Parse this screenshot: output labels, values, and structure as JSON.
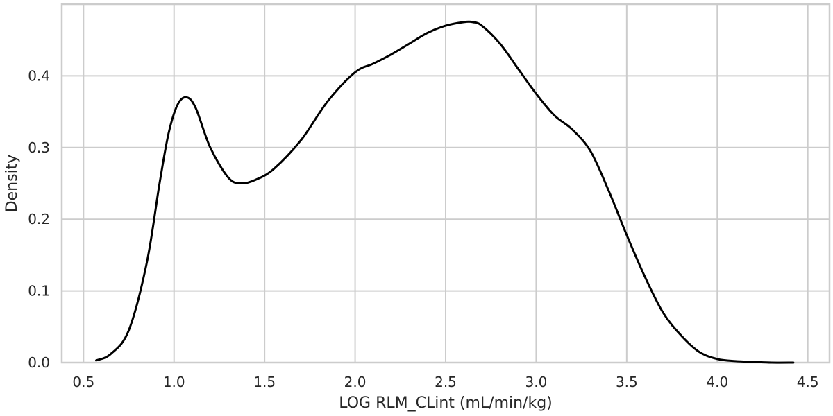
{
  "chart_data": {
    "type": "line",
    "title": "",
    "xlabel": "LOG RLM_CLint (mL/min/kg)",
    "ylabel": "Density",
    "xlim": [
      0.38,
      4.62
    ],
    "ylim": [
      0.0,
      0.5
    ],
    "xticks": [
      0.5,
      1.0,
      1.5,
      2.0,
      2.5,
      3.0,
      3.5,
      4.0,
      4.5
    ],
    "xtick_labels": [
      "0.5",
      "1.0",
      "1.5",
      "2.0",
      "2.5",
      "3.0",
      "3.5",
      "4.0",
      "4.5"
    ],
    "yticks": [
      0.0,
      0.1,
      0.2,
      0.3,
      0.4
    ],
    "ytick_labels": [
      "0.0",
      "0.1",
      "0.2",
      "0.3",
      "0.4"
    ],
    "grid": true,
    "line_color": "#000000",
    "grid_color": "#cccccc",
    "series": [
      {
        "x": [
          0.57,
          0.65,
          0.75,
          0.85,
          0.92,
          0.97,
          1.02,
          1.07,
          1.12,
          1.2,
          1.3,
          1.37,
          1.45,
          1.55,
          1.7,
          1.85,
          2.0,
          2.1,
          2.2,
          2.3,
          2.4,
          2.5,
          2.6,
          2.65,
          2.7,
          2.8,
          2.9,
          3.0,
          3.1,
          3.2,
          3.3,
          3.4,
          3.5,
          3.6,
          3.7,
          3.8,
          3.9,
          4.0,
          4.1,
          4.2,
          4.3,
          4.42
        ],
        "y": [
          0.003,
          0.012,
          0.045,
          0.14,
          0.25,
          0.32,
          0.36,
          0.37,
          0.355,
          0.3,
          0.258,
          0.25,
          0.255,
          0.27,
          0.31,
          0.365,
          0.405,
          0.417,
          0.43,
          0.445,
          0.46,
          0.47,
          0.475,
          0.475,
          0.47,
          0.445,
          0.41,
          0.375,
          0.345,
          0.325,
          0.295,
          0.24,
          0.178,
          0.12,
          0.07,
          0.038,
          0.015,
          0.005,
          0.002,
          0.001,
          0.0,
          0.0
        ]
      }
    ]
  }
}
